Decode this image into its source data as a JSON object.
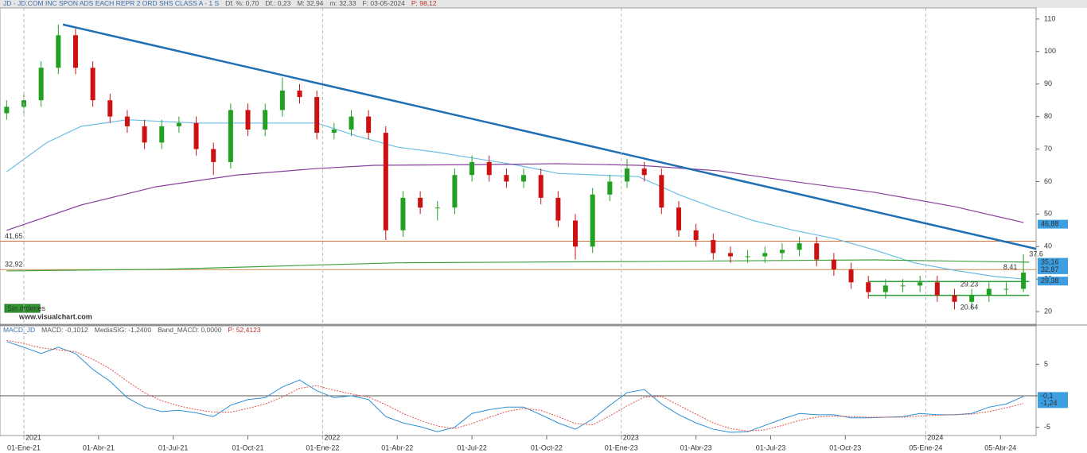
{
  "chart_data": [
    {
      "type": "candlestick",
      "header": [
        "JD - JD.COM INC SPON ADS EACH REPR 2 ORD SHS CLASS A - 1 S",
        "Df. %: 0,70",
        "Df.: 0,23",
        "M: 32,94",
        "m: 32,33",
        "F: 03-05-2024",
        "P: 98,12"
      ],
      "xlim": [
        -4.155,
        176.2
      ],
      "ylim": [
        16.1,
        113.4
      ],
      "yticks": [
        20,
        30,
        40,
        50,
        60,
        70,
        80,
        90,
        100,
        110
      ],
      "up_color": "#22a022",
      "down_color": "#cc1111",
      "x": [
        -3,
        0,
        3,
        6,
        9,
        12,
        15,
        18,
        21,
        24,
        27,
        30,
        33,
        36,
        39,
        42,
        45,
        48,
        51,
        54,
        57,
        60,
        63,
        66,
        69,
        72,
        75,
        78,
        81,
        84,
        87,
        90,
        93,
        96,
        99,
        102,
        105,
        108,
        111,
        114,
        117,
        120,
        123,
        126,
        129,
        132,
        135,
        138,
        141,
        144,
        147,
        150,
        153,
        156,
        159,
        162,
        165,
        168,
        171,
        174
      ],
      "open": [
        81,
        83,
        85,
        95,
        105,
        95,
        85,
        80,
        77,
        72,
        77,
        78,
        70,
        66,
        82,
        76,
        82,
        88,
        86,
        75,
        76,
        80,
        75,
        45,
        55,
        52,
        52,
        62,
        66,
        62,
        60,
        62,
        55,
        48,
        40,
        56,
        60,
        64,
        62,
        52,
        45,
        42,
        38,
        37,
        37,
        38,
        39,
        41,
        36,
        33,
        29,
        26,
        28,
        28,
        29,
        25,
        23,
        25,
        27,
        27
      ],
      "high": [
        85,
        87,
        97,
        108.3,
        107,
        97,
        87,
        82,
        79,
        79,
        80,
        80,
        72,
        84,
        84,
        84,
        92,
        90,
        88,
        78,
        82,
        82,
        77,
        57,
        57,
        54,
        64,
        68,
        68,
        64,
        64,
        64,
        57,
        50,
        58,
        62,
        67,
        66,
        64,
        54,
        47,
        44,
        40,
        39,
        40,
        41,
        43,
        43,
        38,
        35,
        31,
        30,
        30,
        31,
        31,
        27,
        27,
        29,
        29,
        37.6
      ],
      "low": [
        79,
        81,
        83,
        93,
        93,
        83,
        78,
        75,
        70,
        70,
        75,
        68,
        62,
        64,
        74,
        74,
        80,
        84,
        73,
        73,
        74,
        73,
        42,
        43,
        50,
        48,
        50,
        60,
        60,
        58,
        58,
        53,
        46,
        36,
        38,
        54,
        58,
        60,
        50,
        43,
        40,
        36,
        35,
        35,
        35,
        36,
        37,
        34,
        31,
        27,
        24,
        24,
        26,
        26,
        23,
        20.64,
        21,
        23,
        25,
        26
      ],
      "close": [
        83,
        85,
        95,
        105,
        95,
        85,
        80,
        77,
        72,
        77,
        78,
        70,
        66,
        82,
        76,
        82,
        88,
        86,
        75,
        76,
        80,
        75,
        45,
        55,
        52,
        52,
        62,
        66,
        62,
        60,
        62,
        55,
        48,
        40,
        56,
        60,
        64,
        62,
        52,
        45,
        42,
        38,
        37,
        37,
        38,
        39,
        41,
        36,
        33,
        29,
        26,
        28,
        28,
        29,
        25,
        23,
        25,
        27,
        27,
        32
      ],
      "moving_averages": [
        {
          "color": "#6bbde3",
          "x": [
            -3,
            4,
            10,
            18,
            30,
            40,
            51,
            58,
            65,
            72,
            79,
            86,
            93,
            100,
            107,
            114,
            120,
            127,
            134,
            141,
            148,
            155,
            162,
            169,
            174
          ],
          "values": [
            63,
            72,
            77,
            79,
            78,
            78,
            78,
            74,
            70.6,
            69,
            67,
            65,
            62.5,
            62,
            61.5,
            56,
            52,
            48,
            45,
            42.5,
            39,
            35,
            32.7,
            30.8,
            30
          ]
        },
        {
          "color": "#8a3f9e",
          "x": [
            -3,
            10,
            23,
            37,
            51,
            61,
            79,
            93,
            107,
            121,
            134,
            148,
            162,
            174
          ],
          "values": [
            45,
            52.8,
            58.4,
            62,
            64,
            65,
            65.2,
            65.5,
            65,
            63.3,
            60,
            56.7,
            52.3,
            47.4
          ]
        },
        {
          "color": "#3ea03e",
          "x": [
            -3,
            24,
            65,
            107,
            148,
            175
          ],
          "values": [
            32.5,
            33,
            35,
            35.4,
            35.9,
            35.2
          ]
        }
      ],
      "trendline": {
        "color": "#1f6fb5",
        "x": [
          6.8,
          176.2
        ],
        "values": [
          108.3,
          39.3
        ]
      },
      "levels": [
        {
          "value": 41.65,
          "label": "41,65",
          "color": "#d2743f"
        },
        {
          "value": 32.92,
          "label": "32,92",
          "color": "#c98a4a"
        }
      ],
      "channel": {
        "color": "#2f9a3a",
        "x": [
          147,
          175
        ],
        "upper": 29.23,
        "lower": 25
      },
      "price_tags": [
        {
          "value": 46.88,
          "label": "46,88"
        },
        {
          "value": 35.16,
          "label": "35,16"
        },
        {
          "value": 32.87,
          "label": "32,87"
        },
        {
          "value": 29.38,
          "label": "29,38"
        }
      ],
      "annotations": [
        {
          "label": "37.6",
          "x": 175,
          "y": 37.6
        },
        {
          "label": "8.41",
          "x": 170.5,
          "y": 33.5
        },
        {
          "label": "29.23",
          "x": 163,
          "y": 28.3
        },
        {
          "label": "20.64",
          "x": 163,
          "y": 21.2
        }
      ],
      "status": "Sin órdenes",
      "watermark": "www.visualchart.com"
    },
    {
      "type": "line",
      "header": [
        "MACD_JD",
        "MACD: -0,1012",
        "MediaSIG: -1,2400",
        "Band_MACD: 0,0000",
        "P: 52,4123"
      ],
      "xlim": [
        -4.155,
        176.2
      ],
      "ylim": [
        -6.3,
        11.1
      ],
      "yticks": [
        -5,
        0,
        5
      ],
      "x": [
        -3,
        0,
        3,
        6,
        9,
        12,
        15,
        18,
        21,
        24,
        27,
        30,
        33,
        36,
        39,
        42,
        45,
        48,
        51,
        54,
        57,
        60,
        63,
        66,
        69,
        72,
        75,
        78,
        81,
        84,
        87,
        90,
        93,
        96,
        99,
        102,
        105,
        108,
        111,
        114,
        117,
        120,
        123,
        126,
        129,
        132,
        135,
        138,
        141,
        144,
        147,
        150,
        153,
        156,
        159,
        162,
        165,
        168,
        171,
        174
      ],
      "series": [
        {
          "color": "#2a8fd8",
          "style": "solid",
          "values": [
            8.6,
            7.7,
            6.7,
            7.7,
            6.7,
            4.2,
            2.3,
            -0.3,
            -1.8,
            -2.5,
            -2.3,
            -2.7,
            -3.3,
            -1.5,
            -0.6,
            -0.3,
            1.4,
            2.5,
            0.8,
            -0.3,
            0,
            -0.6,
            -3.3,
            -4.3,
            -4.9,
            -5.7,
            -5,
            -2.8,
            -2.2,
            -1.8,
            -1.8,
            -3,
            -4.3,
            -5.3,
            -3.7,
            -1.5,
            0.5,
            1,
            -1.3,
            -3,
            -4.3,
            -5.3,
            -5.8,
            -5.7,
            -4.7,
            -3.7,
            -2.8,
            -3,
            -3,
            -3.5,
            -3.5,
            -3.4,
            -3.3,
            -2.8,
            -3,
            -3,
            -2.8,
            -1.8,
            -1.3,
            -0.1
          ]
        },
        {
          "color": "#e0554a",
          "style": "dotted",
          "values": [
            8.8,
            8.3,
            7.6,
            7.3,
            7.0,
            5.8,
            4.3,
            2.3,
            0.5,
            -0.8,
            -1.6,
            -2.2,
            -2.6,
            -2.6,
            -2.0,
            -1.3,
            -0.2,
            1.2,
            1.6,
            0.9,
            0.3,
            -0.2,
            -1.4,
            -2.8,
            -3.9,
            -4.8,
            -5.2,
            -4.4,
            -3.4,
            -2.5,
            -2.0,
            -2.3,
            -3.3,
            -4.4,
            -4.6,
            -3.2,
            -1.6,
            -0.2,
            -0.1,
            -1.5,
            -2.9,
            -4.3,
            -5.2,
            -5.6,
            -5.4,
            -4.7,
            -3.9,
            -3.4,
            -3.2,
            -3.3,
            -3.4,
            -3.4,
            -3.4,
            -3.2,
            -3.1,
            -3.0,
            -2.9,
            -2.5,
            -1.9,
            -1.24
          ]
        }
      ],
      "tags": [
        {
          "value": -0.1,
          "label": "-0,1"
        },
        {
          "value": -1.24,
          "label": "-1,24"
        }
      ],
      "xticks": [
        {
          "value": 0,
          "label": "01-Ene-21"
        },
        {
          "value": 13,
          "label": "01-Abr-21"
        },
        {
          "value": 26,
          "label": "01-Jul-21"
        },
        {
          "value": 39,
          "label": "01-Oct-21"
        },
        {
          "value": 52,
          "label": "01-Ene-22"
        },
        {
          "value": 65,
          "label": "01-Abr-22"
        },
        {
          "value": 78,
          "label": "01-Jul-22"
        },
        {
          "value": 91,
          "label": "01-Oct-22"
        },
        {
          "value": 104,
          "label": "01-Ene-23"
        },
        {
          "value": 117,
          "label": "01-Abr-23"
        },
        {
          "value": 130,
          "label": "01-Jul-23"
        },
        {
          "value": 143,
          "label": "01-Oct-23"
        },
        {
          "value": 157,
          "label": "05-Ene-24"
        },
        {
          "value": 170,
          "label": "05-Abr-24"
        }
      ],
      "year_ticks": [
        {
          "value": 0,
          "label": "2021"
        },
        {
          "value": 52,
          "label": "2022"
        },
        {
          "value": 104,
          "label": "2023"
        },
        {
          "value": 157,
          "label": "2024"
        }
      ]
    }
  ]
}
